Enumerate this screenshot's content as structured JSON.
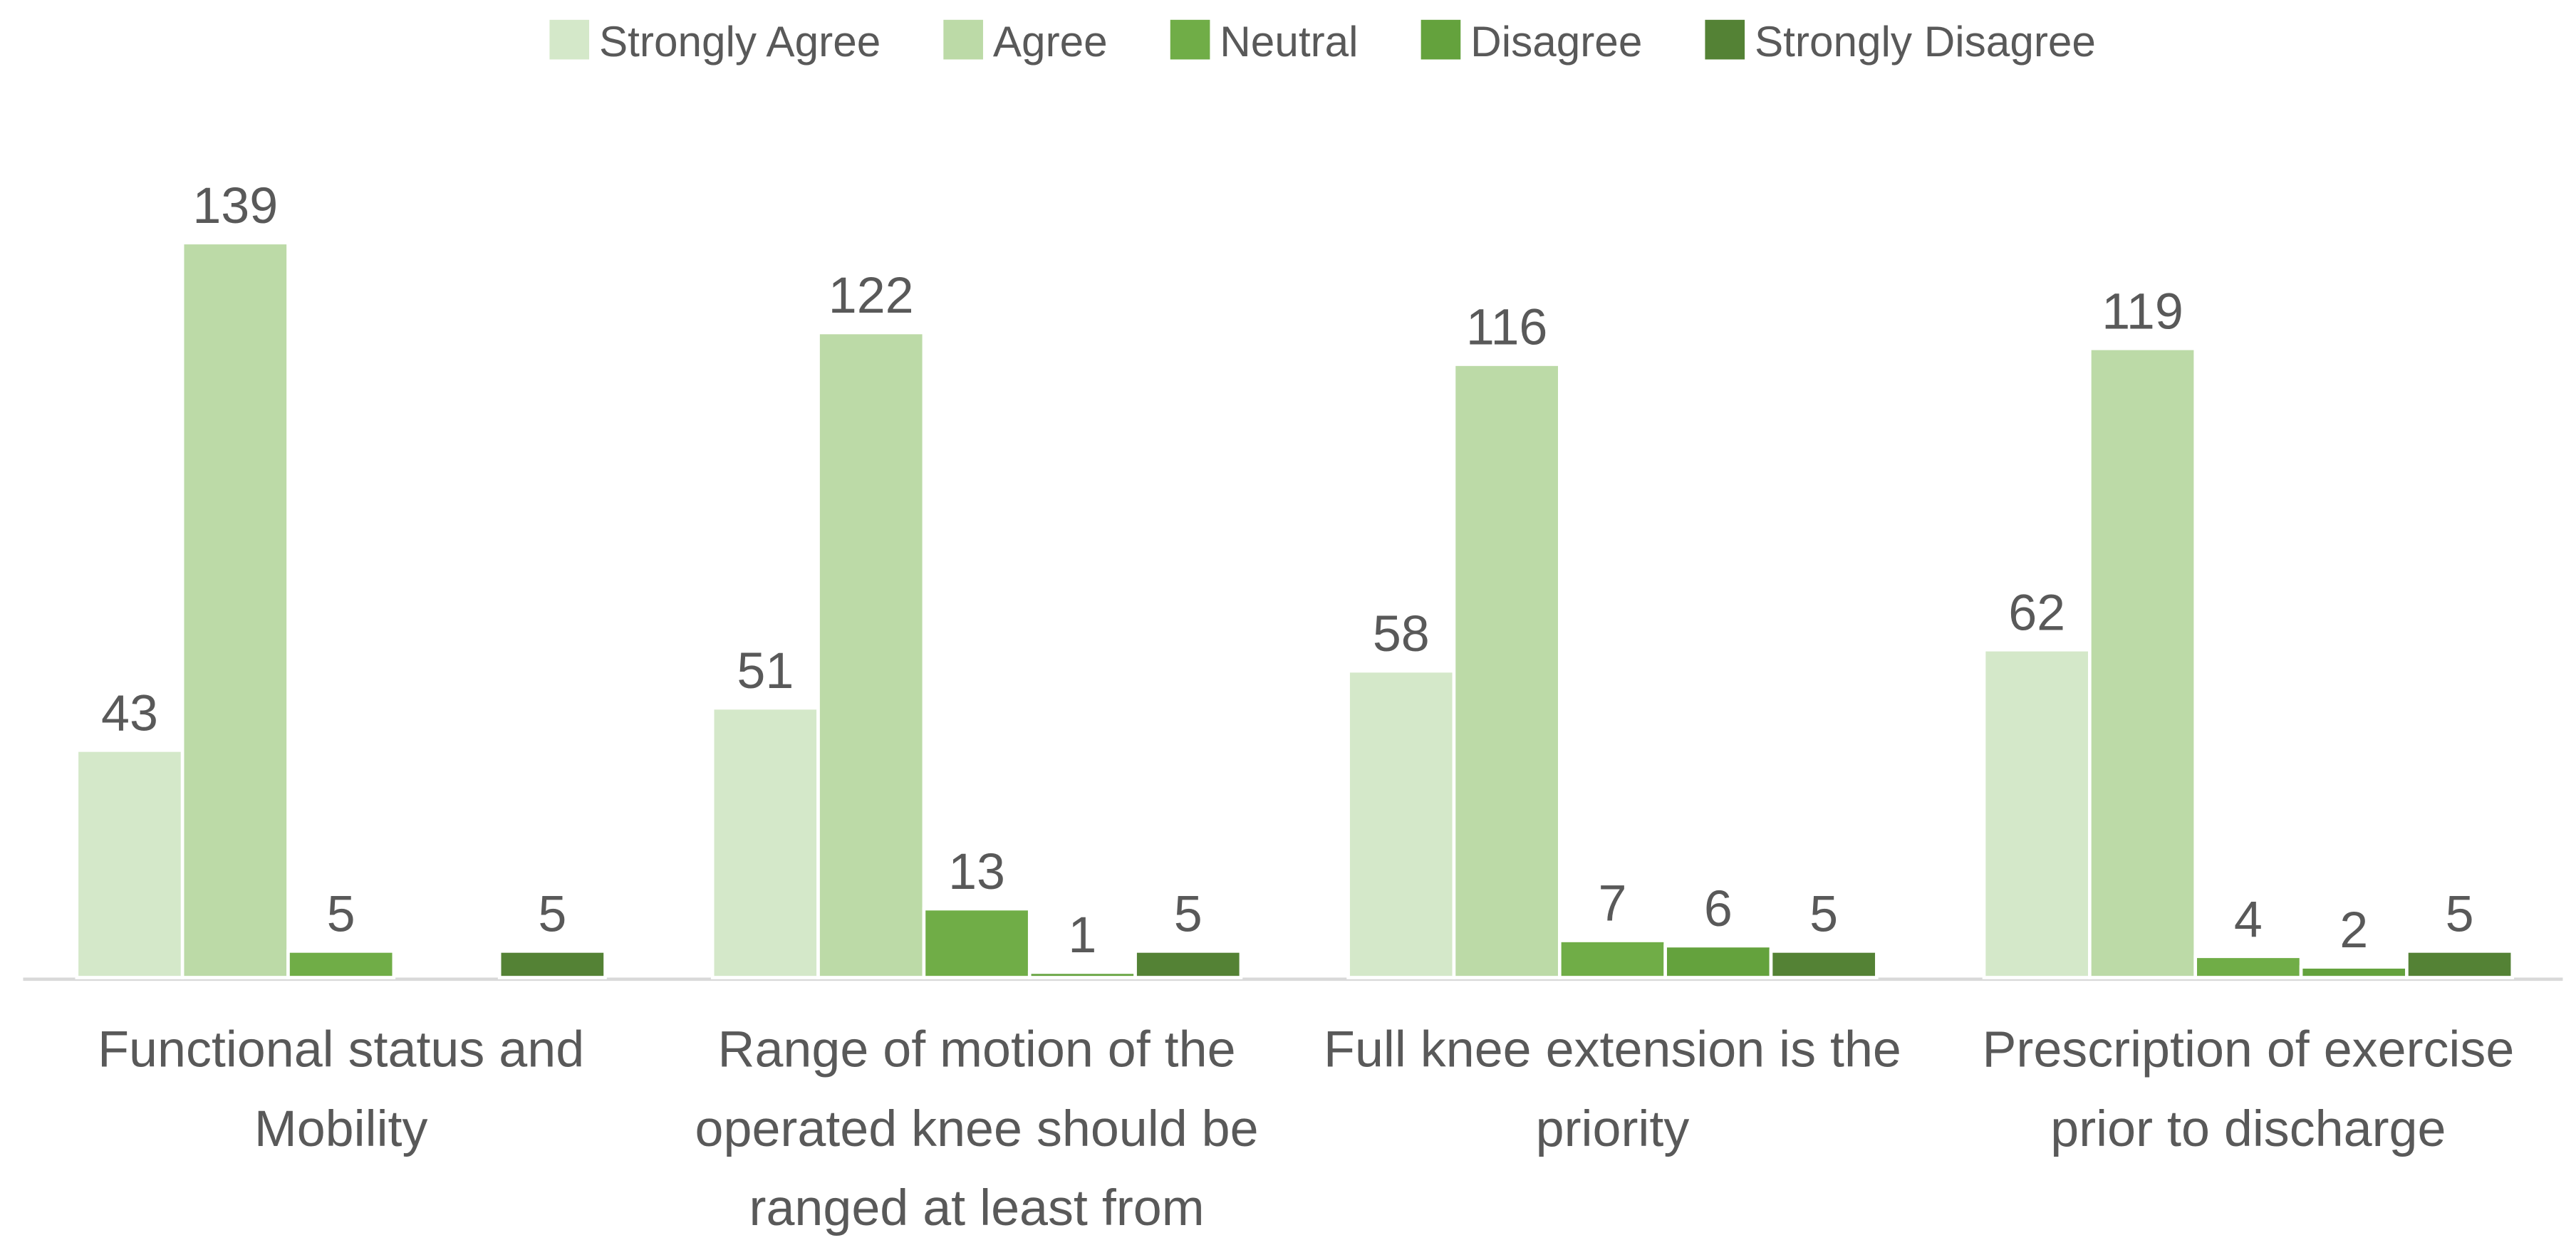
{
  "chart_data": {
    "type": "bar",
    "categories": [
      "Functional status and Mobility",
      "Range of motion of the operated knee should be ranged at least from",
      "Full knee extension is the priority",
      "Prescription of exercise prior to discharge"
    ],
    "series": [
      {
        "name": "Strongly Agree",
        "color": "#d4e8c9",
        "values": [
          43,
          51,
          58,
          62
        ]
      },
      {
        "name": "Agree",
        "color": "#bcdaa7",
        "values": [
          139,
          122,
          116,
          119
        ]
      },
      {
        "name": "Neutral",
        "color": "#70ad47",
        "values": [
          5,
          13,
          7,
          4
        ]
      },
      {
        "name": "Disagree",
        "color": "#64a23d",
        "values": [
          null,
          1,
          6,
          2
        ]
      },
      {
        "name": "Strongly Disagree",
        "color": "#548235",
        "values": [
          5,
          5,
          5,
          5
        ]
      }
    ],
    "legend": "top"
  }
}
